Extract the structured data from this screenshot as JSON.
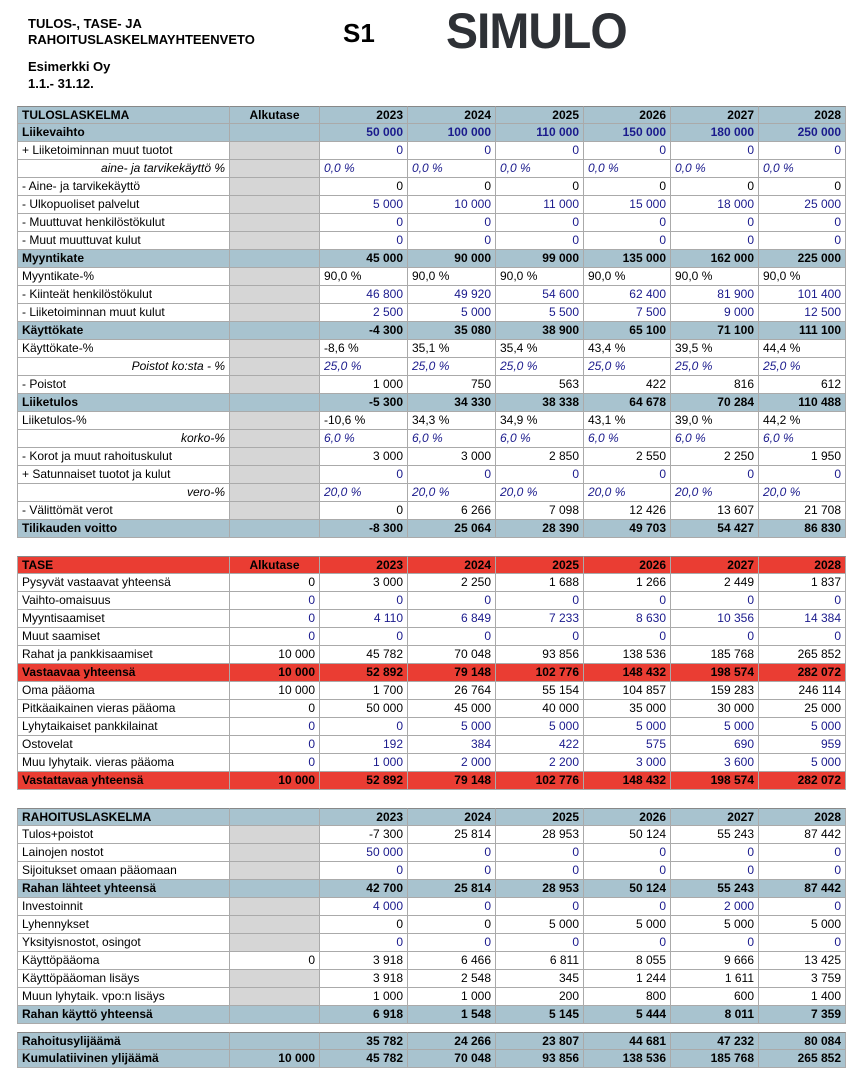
{
  "header": {
    "title_lines": [
      "TULOS-, TASE- JA",
      "RAHOITUSLASKELMAYHTEENVETO"
    ],
    "code": "S1",
    "logo": "SIMULO",
    "company": "Esimerkki Oy",
    "period": "1.1.- 31.12."
  },
  "tables": [
    {
      "header": [
        "TULOSLASKELMA",
        "Alkutase",
        "2023",
        "2024",
        "2025",
        "2026",
        "2027",
        "2028"
      ],
      "rows": [
        [
          "Liikevaihto",
          null,
          "50 000",
          "100 000",
          "110 000",
          "150 000",
          "180 000",
          "250 000"
        ],
        [
          "+ Liiketoiminnan muut tuotot",
          null,
          "0",
          "0",
          "0",
          "0",
          "0",
          "0"
        ],
        [
          "aine- ja tarvikekäyttö %",
          null,
          "0,0 %",
          "0,0 %",
          "0,0 %",
          "0,0 %",
          "0,0 %",
          "0,0 %"
        ],
        [
          "- Aine- ja tarvikekäyttö",
          null,
          "0",
          "0",
          "0",
          "0",
          "0",
          "0"
        ],
        [
          "- Ulkopuoliset palvelut",
          null,
          "5 000",
          "10 000",
          "11 000",
          "15 000",
          "18 000",
          "25 000"
        ],
        [
          "- Muuttuvat henkilöstökulut",
          null,
          "0",
          "0",
          "0",
          "0",
          "0",
          "0"
        ],
        [
          "- Muut muuttuvat kulut",
          null,
          "0",
          "0",
          "0",
          "0",
          "0",
          "0"
        ],
        [
          "Myyntikate",
          null,
          "45 000",
          "90 000",
          "99 000",
          "135 000",
          "162 000",
          "225 000"
        ],
        [
          "Myyntikate-%",
          null,
          "90,0 %",
          "90,0 %",
          "90,0 %",
          "90,0 %",
          "90,0 %",
          "90,0 %"
        ],
        [
          "- Kiinteät henkilöstökulut",
          null,
          "46 800",
          "49 920",
          "54 600",
          "62 400",
          "81 900",
          "101 400"
        ],
        [
          "- Liiketoiminnan muut kulut",
          null,
          "2 500",
          "5 000",
          "5 500",
          "7 500",
          "9 000",
          "12 500"
        ],
        [
          "Käyttökate",
          null,
          "-4 300",
          "35 080",
          "38 900",
          "65 100",
          "71 100",
          "111 100"
        ],
        [
          "Käyttökate-%",
          null,
          "-8,6 %",
          "35,1 %",
          "35,4 %",
          "43,4 %",
          "39,5 %",
          "44,4 %"
        ],
        [
          "Poistot ko:sta - %",
          null,
          "25,0 %",
          "25,0 %",
          "25,0 %",
          "25,0 %",
          "25,0 %",
          "25,0 %"
        ],
        [
          "- Poistot",
          null,
          "1 000",
          "750",
          "563",
          "422",
          "816",
          "612"
        ],
        [
          "Liiketulos",
          null,
          "-5 300",
          "34 330",
          "38 338",
          "64 678",
          "70 284",
          "110 488"
        ],
        [
          "Liiketulos-%",
          null,
          "-10,6 %",
          "34,3 %",
          "34,9 %",
          "43,1 %",
          "39,0 %",
          "44,2 %"
        ],
        [
          "korko-%",
          null,
          "6,0 %",
          "6,0 %",
          "6,0 %",
          "6,0 %",
          "6,0 %",
          "6,0 %"
        ],
        [
          "- Korot ja muut rahoituskulut",
          null,
          "3 000",
          "3 000",
          "2 850",
          "2 550",
          "2 250",
          "1 950"
        ],
        [
          "+ Satunnaiset tuotot ja kulut",
          null,
          "0",
          "0",
          "0",
          "0",
          "0",
          "0"
        ],
        [
          "vero-%",
          null,
          "20,0 %",
          "20,0 %",
          "20,0 %",
          "20,0 %",
          "20,0 %",
          "20,0 %"
        ],
        [
          "- Välittömät verot",
          null,
          "0",
          "6 266",
          "7 098",
          "12 426",
          "13 607",
          "21 708"
        ],
        [
          "Tilikauden voitto",
          null,
          "-8 300",
          "25 064",
          "28 390",
          "49 703",
          "54 427",
          "86 830"
        ]
      ]
    },
    {
      "header": [
        "TASE",
        "Alkutase",
        "2023",
        "2024",
        "2025",
        "2026",
        "2027",
        "2028"
      ],
      "rows": [
        [
          "Pysyvät vastaavat yhteensä",
          "0",
          "3 000",
          "2 250",
          "1 688",
          "1 266",
          "2 449",
          "1 837"
        ],
        [
          "Vaihto-omaisuus",
          "0",
          "0",
          "0",
          "0",
          "0",
          "0",
          "0"
        ],
        [
          "Myyntisaamiset",
          "0",
          "4 110",
          "6 849",
          "7 233",
          "8 630",
          "10 356",
          "14 384"
        ],
        [
          "Muut saamiset",
          "0",
          "0",
          "0",
          "0",
          "0",
          "0",
          "0"
        ],
        [
          "Rahat ja pankkisaamiset",
          "10 000",
          "45 782",
          "70 048",
          "93 856",
          "138 536",
          "185 768",
          "265 852"
        ],
        [
          "Vastaavaa yhteensä",
          "10 000",
          "52 892",
          "79 148",
          "102 776",
          "148 432",
          "198 574",
          "282 072"
        ],
        [
          "Oma pääoma",
          "10 000",
          "1 700",
          "26 764",
          "55 154",
          "104 857",
          "159 283",
          "246 114"
        ],
        [
          "Pitkäaikainen vieras pääoma",
          "0",
          "50 000",
          "45 000",
          "40 000",
          "35 000",
          "30 000",
          "25 000"
        ],
        [
          "Lyhytaikaiset pankkilainat",
          "0",
          "0",
          "5 000",
          "5 000",
          "5 000",
          "5 000",
          "5 000"
        ],
        [
          "Ostovelat",
          "0",
          "192",
          "384",
          "422",
          "575",
          "690",
          "959"
        ],
        [
          "Muu lyhytaik. vieras pääoma",
          "0",
          "1 000",
          "2 000",
          "2 200",
          "3 000",
          "3 600",
          "5 000"
        ],
        [
          "Vastattavaa yhteensä",
          "10 000",
          "52 892",
          "79 148",
          "102 776",
          "148 432",
          "198 574",
          "282 072"
        ]
      ]
    },
    {
      "header": [
        "RAHOITUSLASKELMA",
        null,
        "2023",
        "2024",
        "2025",
        "2026",
        "2027",
        "2028"
      ],
      "rows": [
        [
          "Tulos+poistot",
          null,
          "-7 300",
          "25 814",
          "28 953",
          "50 124",
          "55 243",
          "87 442"
        ],
        [
          "Lainojen nostot",
          null,
          "50 000",
          "0",
          "0",
          "0",
          "0",
          "0"
        ],
        [
          "Sijoitukset omaan pääomaan",
          null,
          "0",
          "0",
          "0",
          "0",
          "0",
          "0"
        ],
        [
          "Rahan lähteet yhteensä",
          null,
          "42 700",
          "25 814",
          "28 953",
          "50 124",
          "55 243",
          "87 442"
        ],
        [
          "Investoinnit",
          null,
          "4 000",
          "0",
          "0",
          "0",
          "2 000",
          "0"
        ],
        [
          "Lyhennykset",
          null,
          "0",
          "0",
          "5 000",
          "5 000",
          "5 000",
          "5 000"
        ],
        [
          "Yksityisnostot, osingot",
          null,
          "0",
          "0",
          "0",
          "0",
          "0",
          "0"
        ],
        [
          "Käyttöpääoma",
          "0",
          "3 918",
          "6 466",
          "6 811",
          "8 055",
          "9 666",
          "13 425"
        ],
        [
          "Käyttöpääoman lisäys",
          null,
          "3 918",
          "2 548",
          "345",
          "1 244",
          "1 611",
          "3 759"
        ],
        [
          "Muun lyhytaik. vpo:n lisäys",
          null,
          "1 000",
          "1 000",
          "200",
          "800",
          "600",
          "1 400"
        ],
        [
          "Rahan käyttö yhteensä",
          null,
          "6 918",
          "1 548",
          "5 145",
          "5 444",
          "8 011",
          "7 359"
        ]
      ]
    },
    {
      "rows": [
        [
          "Rahoitusylijäämä",
          null,
          "35 782",
          "24 266",
          "23 807",
          "44 681",
          "47 232",
          "80 084"
        ],
        [
          "Kumulatiivinen ylijäämä",
          "10 000",
          "45 782",
          "70 048",
          "93 856",
          "138 536",
          "185 768",
          "265 852"
        ]
      ]
    }
  ]
}
